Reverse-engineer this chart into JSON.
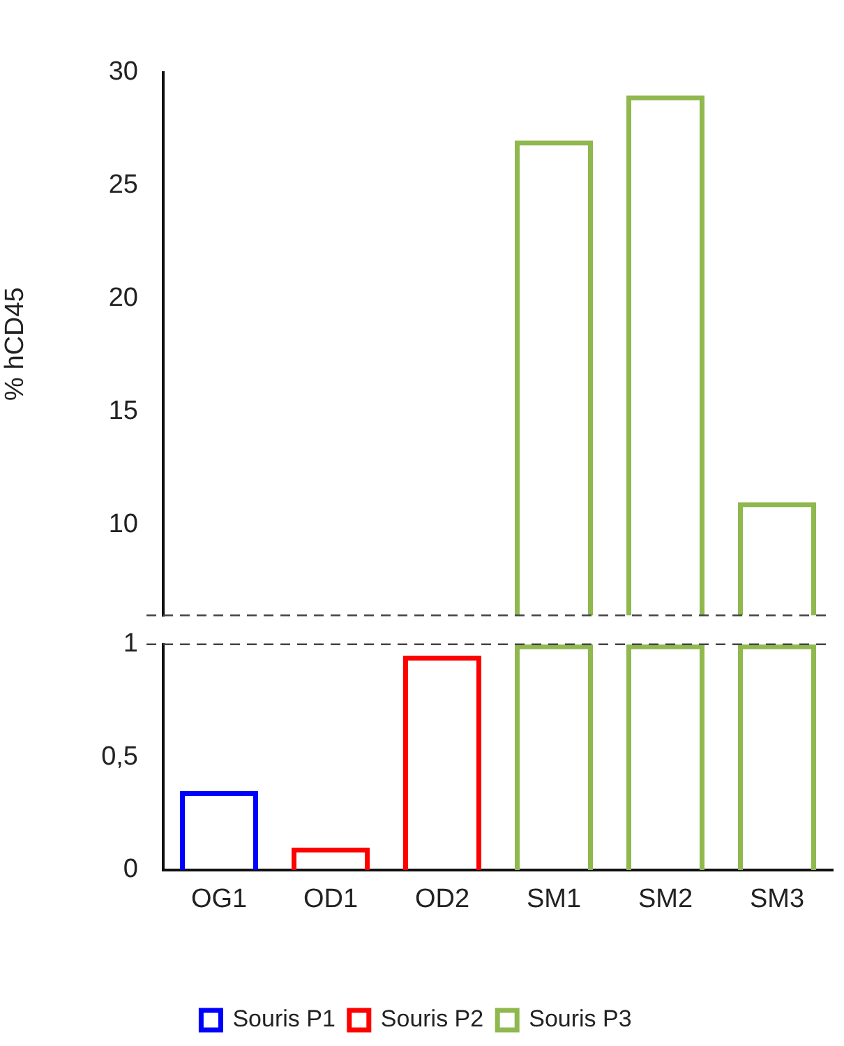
{
  "chart_data": [
    {
      "type": "bar",
      "ylabel": "% hCD45",
      "categories": [
        null,
        null,
        null,
        null,
        null,
        null
      ],
      "tick_labels": "y",
      "ylim": [
        6,
        30
      ],
      "yticks": [
        10,
        15,
        20,
        25,
        30
      ],
      "series": [
        {
          "color": "#8fb84f",
          "values": [
            null,
            null,
            null,
            27,
            29,
            11
          ]
        }
      ]
    },
    {
      "type": "bar",
      "categories": [
        "OG1",
        "OD1",
        "OD2",
        "SM1",
        "SM2",
        "SM3"
      ],
      "ylim": [
        0,
        1
      ],
      "yticks": [
        0,
        {
          "value": 0.5,
          "label": "0,5"
        },
        1
      ],
      "legend": "bottom",
      "series": [
        {
          "name": "Souris P1",
          "color": "#0000ff",
          "values": [
            0.35,
            null,
            null,
            null,
            null,
            null
          ]
        },
        {
          "name": "Souris P2",
          "color": "#ff0000",
          "values": [
            null,
            0.1,
            0.95,
            null,
            null,
            null
          ]
        },
        {
          "name": "Souris P3",
          "color": "#8fb84f",
          "values": [
            null,
            null,
            null,
            1,
            1,
            1
          ]
        }
      ]
    }
  ]
}
